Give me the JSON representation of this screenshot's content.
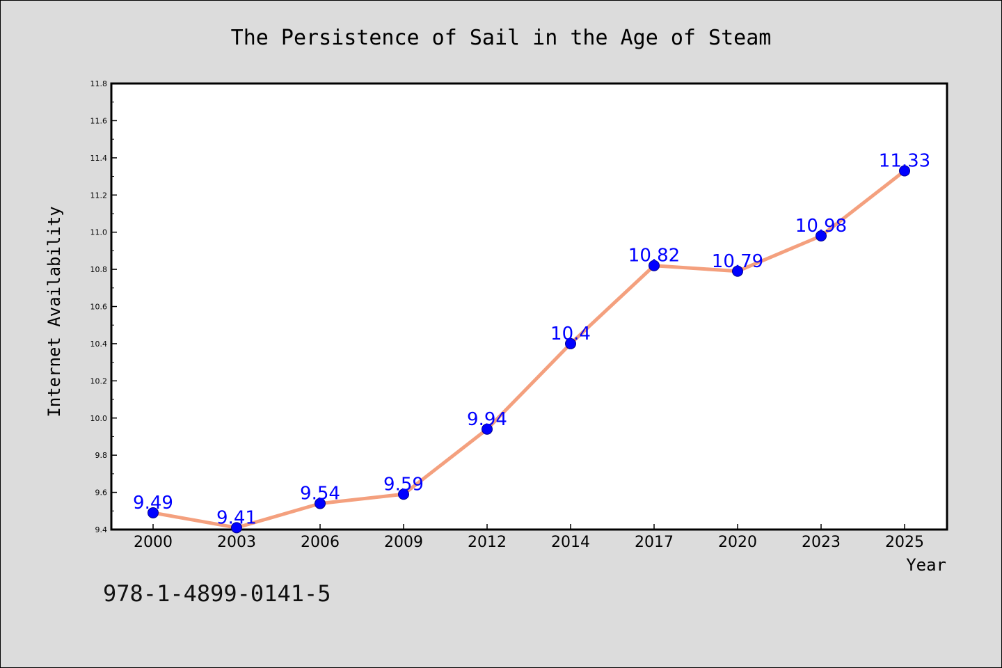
{
  "colors": {
    "background": "#dcdcdc",
    "plot_background": "#ffffff",
    "line": "#f4a07e",
    "marker": "#0000ff",
    "data_label": "#0000ff",
    "text": "#000000"
  },
  "isbn": "978-1-4899-0141-5",
  "chart_data": {
    "type": "line",
    "title": "The Persistence of Sail in the Age of Steam",
    "xlabel": "Year",
    "ylabel": "Internet Availability",
    "categories": [
      "2000",
      "2003",
      "2006",
      "2009",
      "2012",
      "2014",
      "2017",
      "2020",
      "2023",
      "2025"
    ],
    "series": [
      {
        "values": [
          9.49,
          9.41,
          9.54,
          9.59,
          9.94,
          10.4,
          10.82,
          10.79,
          10.98,
          11.33
        ],
        "labels": [
          "9.49",
          "9.41",
          "9.54",
          "9.59",
          "9.94",
          "10.4",
          "10.82",
          "10.79",
          "10.98",
          "11.33"
        ]
      }
    ],
    "ylim": [
      9.4,
      11.8
    ],
    "yticks": [
      "9.4",
      "9.6",
      "9.8",
      "10.0",
      "10.2",
      "10.4",
      "10.6",
      "10.8",
      "11.0",
      "11.2",
      "11.4",
      "11.6",
      "11.8"
    ],
    "grid": false,
    "legend": "none"
  }
}
